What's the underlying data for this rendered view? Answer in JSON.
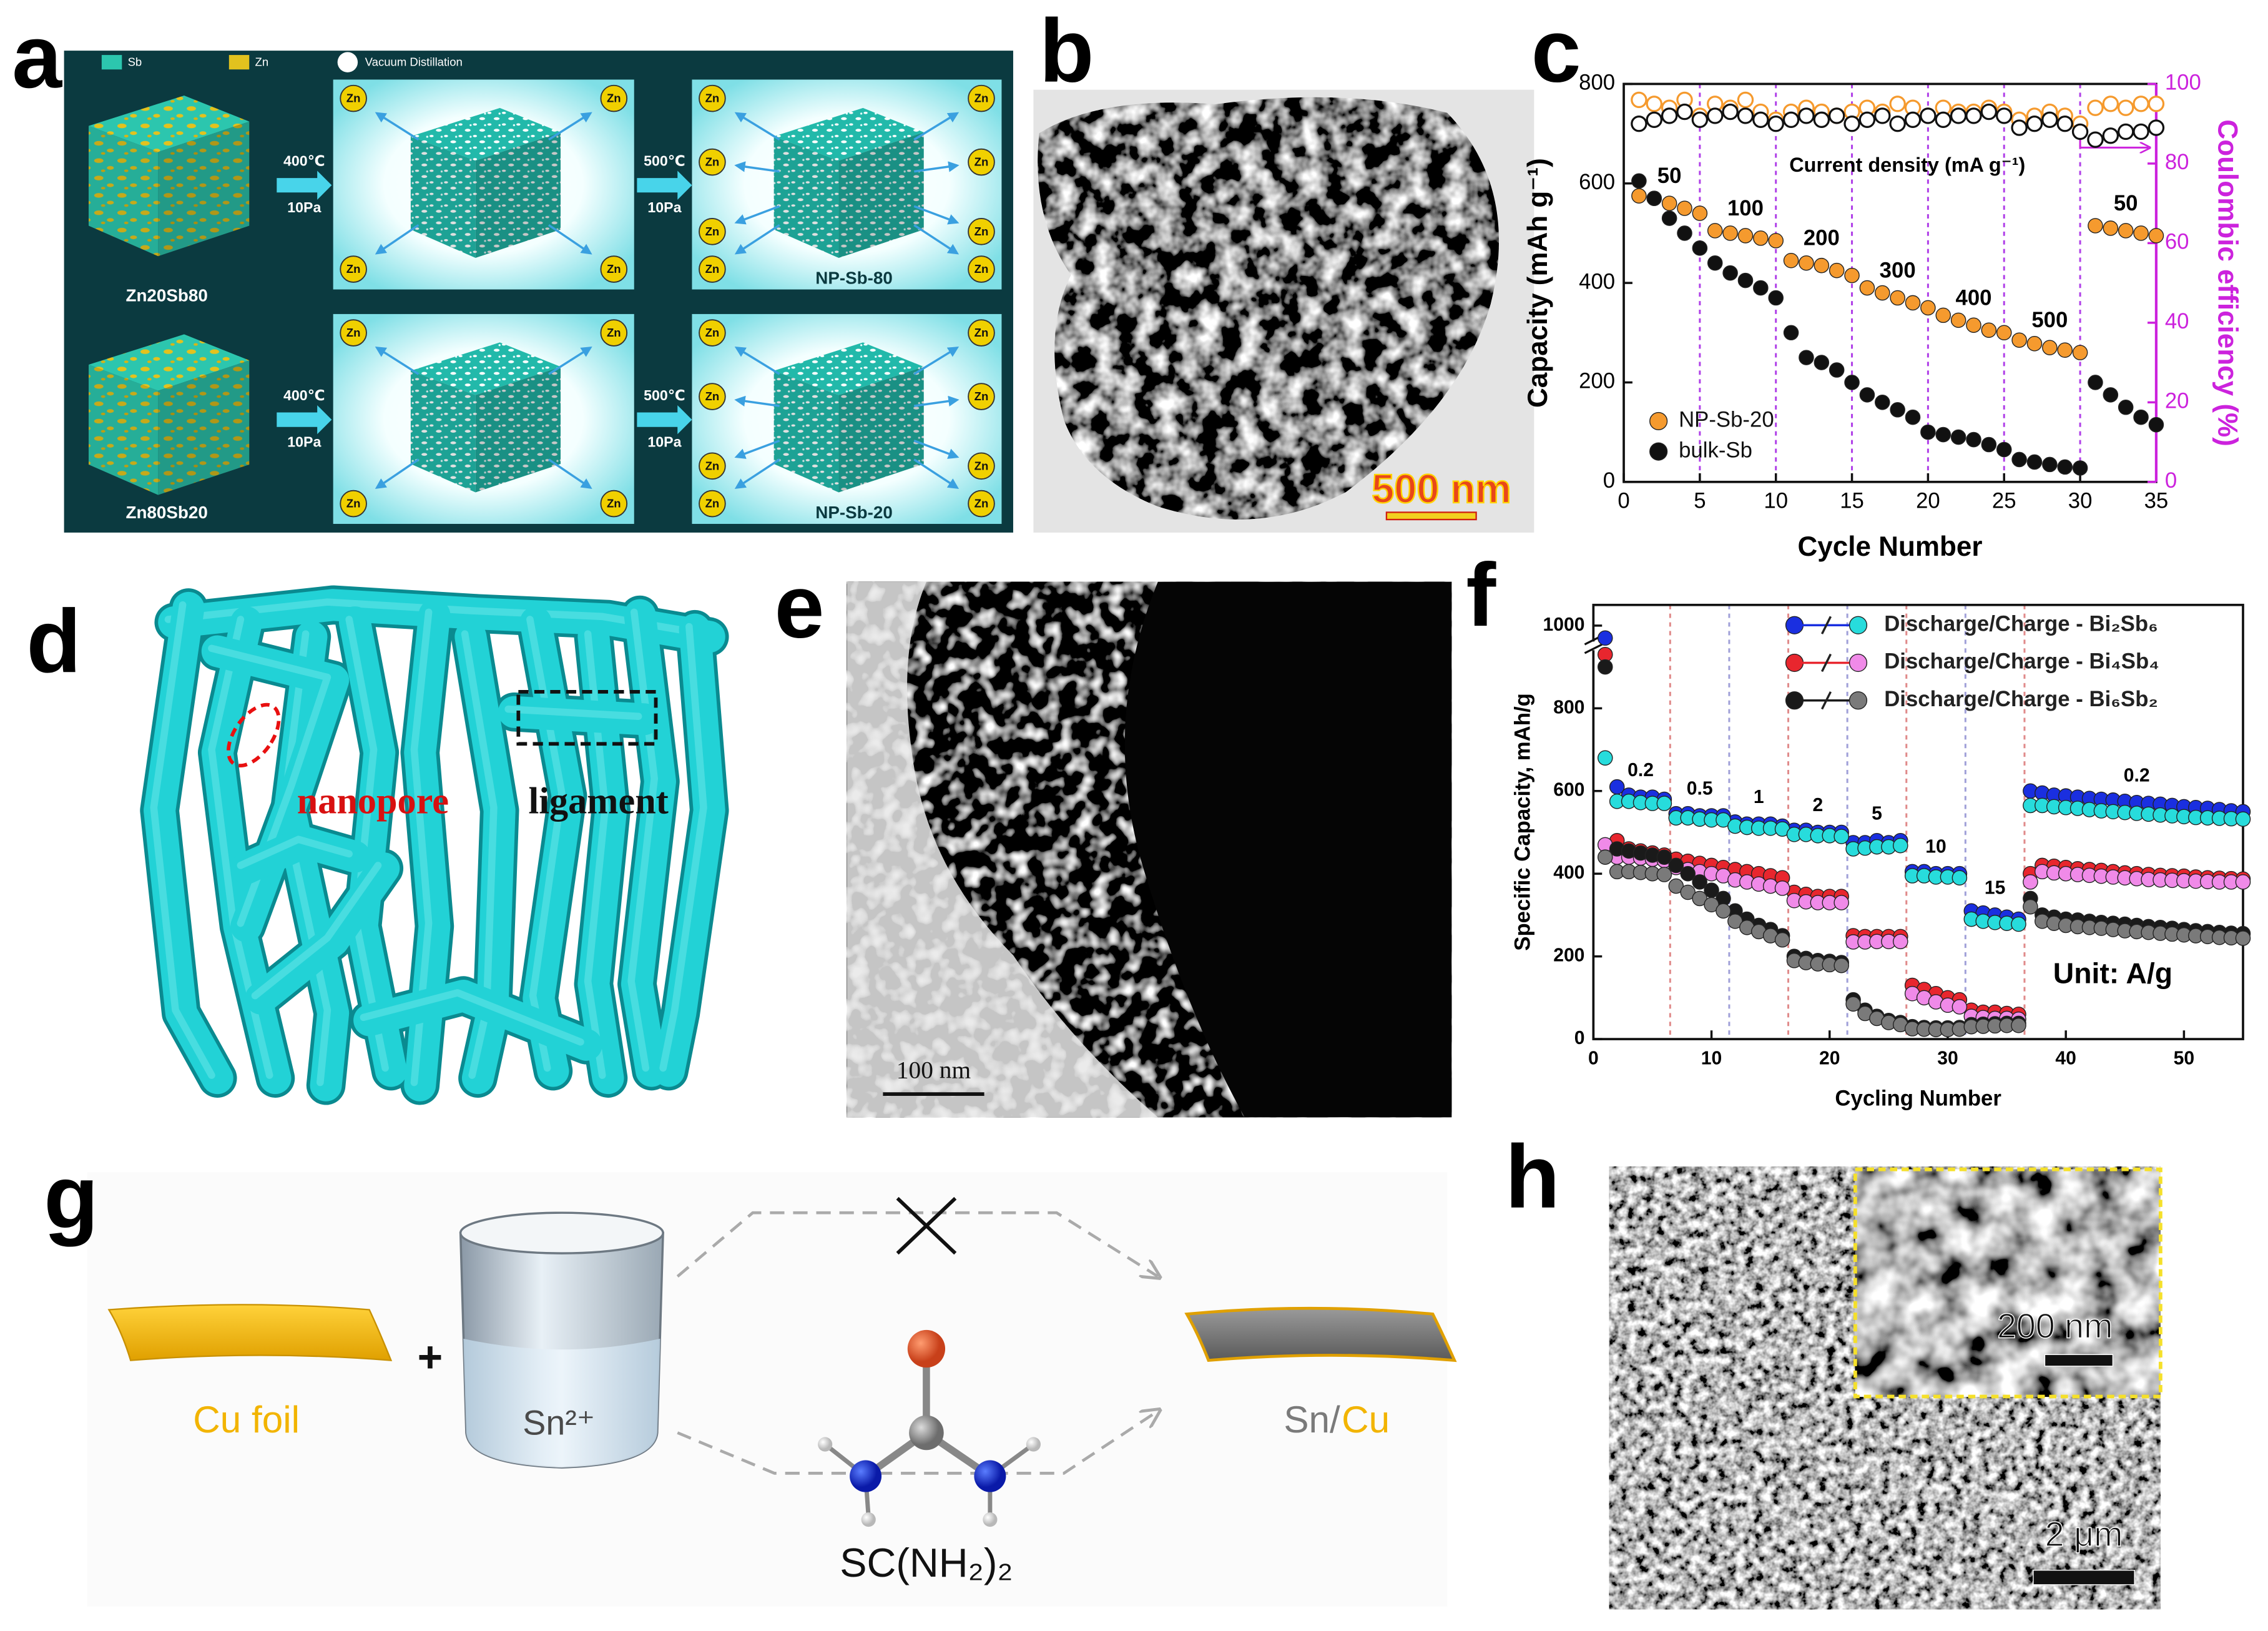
{
  "panel_labels": [
    "a",
    "b",
    "c",
    "d",
    "e",
    "f",
    "g",
    "h"
  ],
  "panel_a": {
    "legend": [
      "Sb",
      "Zn",
      "Vacuum Distillation"
    ],
    "steps": [
      {
        "temperature": "400℃",
        "pressure": "10Pa"
      },
      {
        "temperature": "500℃",
        "pressure": "10Pa"
      }
    ],
    "rows": [
      {
        "precursor": "Zn20Sb80",
        "product": "NP-Sb-80"
      },
      {
        "precursor": "Zn80Sb20",
        "product": "NP-Sb-20"
      }
    ],
    "evaporant": "Zn"
  },
  "panel_b": {
    "scale_bar": "500 nm"
  },
  "panel_d": {
    "labels": [
      "nanopore",
      "ligament"
    ]
  },
  "panel_e": {
    "scale_bar": "100 nm"
  },
  "panel_g": {
    "substrate": "Cu foil",
    "plus": "+",
    "solution": "Sn²⁺",
    "additive": "SC(NH₂)₂",
    "product_parts": [
      "Sn/",
      "Cu"
    ]
  },
  "panel_h": {
    "inset_scale_bar": "200 nm",
    "scale_bar": "2 μm"
  },
  "chart_data": [
    {
      "type": "scatter",
      "x": [
        1,
        2,
        3,
        4,
        5,
        6,
        7,
        8,
        9,
        10,
        11,
        12,
        13,
        14,
        15,
        16,
        17,
        18,
        19,
        20,
        21,
        22,
        23,
        24,
        25,
        26,
        27,
        28,
        29,
        30,
        31,
        32,
        33,
        34,
        35
      ],
      "xlim": [
        0,
        35
      ],
      "xticks": [
        0,
        5,
        10,
        15,
        20,
        25,
        30,
        35
      ],
      "ylim": [
        0,
        800
      ],
      "yticks": [
        0,
        200,
        400,
        600,
        800
      ],
      "y2lim": [
        0,
        100
      ],
      "y2ticks": [
        0,
        20,
        40,
        60,
        80,
        100
      ],
      "xlabel": "Cycle Number",
      "ylabel": "Capacity (mAh g⁻¹)",
      "y2label": "Coulombic efficiency (%)",
      "y2color": "#cc22dd",
      "annotation": "Current density (mA g⁻¹)",
      "dividers": [
        5,
        10,
        15,
        20,
        25,
        30
      ],
      "divider_colors": [
        "#b040e8"
      ],
      "rate_labels": [
        "50",
        "100",
        "200",
        "300",
        "400",
        "500",
        "50"
      ],
      "legend_position": "lower left",
      "series": [
        {
          "name": "NP-Sb-20",
          "color": "#f59a2e",
          "values": [
            575,
            570,
            560,
            550,
            540,
            505,
            500,
            495,
            490,
            485,
            445,
            440,
            435,
            425,
            415,
            390,
            380,
            370,
            360,
            350,
            335,
            325,
            315,
            305,
            300,
            285,
            278,
            270,
            265,
            260,
            515,
            510,
            505,
            500,
            495
          ]
        },
        {
          "name": "bulk-Sb",
          "color": "#111111",
          "values": [
            605,
            570,
            530,
            500,
            470,
            440,
            420,
            405,
            390,
            370,
            300,
            250,
            240,
            225,
            200,
            175,
            160,
            145,
            130,
            100,
            95,
            90,
            85,
            75,
            65,
            45,
            40,
            35,
            30,
            28,
            200,
            175,
            150,
            130,
            115
          ]
        },
        {
          "color": "#f59a2e",
          "axis": "y2",
          "marker": "hollow",
          "values": [
            96,
            95,
            94,
            96,
            92,
            95,
            94,
            96,
            93,
            91,
            93,
            94,
            93,
            92,
            93,
            94,
            93,
            95,
            94,
            92,
            94,
            93,
            93,
            94,
            93,
            91,
            92,
            93,
            92,
            90,
            94,
            95,
            94,
            95,
            95
          ]
        },
        {
          "color": "#111111",
          "axis": "y2",
          "marker": "hollow",
          "values": [
            90,
            91,
            92,
            93,
            91,
            92,
            93,
            92,
            91,
            90,
            91,
            92,
            91,
            92,
            90,
            91,
            92,
            90,
            91,
            92,
            91,
            92,
            92,
            93,
            92,
            89,
            90,
            91,
            90,
            88,
            86,
            87,
            88,
            88,
            89
          ]
        }
      ]
    },
    {
      "type": "scatter",
      "x": [
        1,
        2,
        3,
        4,
        5,
        6,
        7,
        8,
        9,
        10,
        11,
        12,
        13,
        14,
        15,
        16,
        17,
        18,
        19,
        20,
        21,
        22,
        23,
        24,
        25,
        26,
        27,
        28,
        29,
        30,
        31,
        32,
        33,
        34,
        35,
        36,
        37,
        38,
        39,
        40,
        41,
        42,
        43,
        44,
        45,
        46,
        47,
        48,
        49,
        50,
        51,
        52,
        53,
        54,
        55
      ],
      "xlim": [
        0,
        55
      ],
      "xticks": [
        0,
        10,
        20,
        30,
        40,
        50
      ],
      "ylim": [
        0,
        1050
      ],
      "yticks": [
        0,
        200,
        400,
        600,
        800,
        1000
      ],
      "y_break": true,
      "xlabel": "Cycling Number",
      "ylabel": "Specific Capacity, mAh/g",
      "dividers": [
        6.5,
        11.5,
        16.5,
        21.5,
        26.5,
        31.5,
        36.5
      ],
      "divider_colors": [
        "#e08a8a",
        "#a0a0d8"
      ],
      "rate_labels": [
        "0.2",
        "0.5",
        "1",
        "2",
        "5",
        "10",
        "15",
        "0.2"
      ],
      "annotation": "Unit: A/g",
      "legend_position": "upper right",
      "series": [
        {
          "name": "Discharge/Charge - Bi₂Sb₆",
          "color": "#1a2fe0",
          "charge_color": "#27dcdc",
          "values": [
            970,
            610,
            590,
            585,
            585,
            580,
            545,
            545,
            540,
            540,
            540,
            525,
            520,
            520,
            520,
            515,
            505,
            505,
            500,
            500,
            500,
            475,
            475,
            480,
            475,
            480,
            405,
            405,
            400,
            400,
            400,
            310,
            305,
            300,
            295,
            290,
            600,
            595,
            590,
            588,
            585,
            582,
            580,
            578,
            575,
            572,
            570,
            568,
            565,
            562,
            560,
            558,
            555,
            552,
            550
          ],
          "charge_values": [
            680,
            575,
            575,
            572,
            570,
            570,
            535,
            535,
            532,
            530,
            530,
            515,
            512,
            510,
            510,
            508,
            495,
            495,
            492,
            492,
            490,
            460,
            462,
            465,
            465,
            468,
            395,
            395,
            392,
            392,
            390,
            290,
            285,
            282,
            280,
            278,
            565,
            565,
            562,
            560,
            558,
            555,
            552,
            550,
            548,
            546,
            544,
            542,
            540,
            538,
            536,
            535,
            534,
            533,
            532
          ]
        },
        {
          "name": "Discharge/Charge - Bi₄Sb₄",
          "color": "#e8262e",
          "charge_color": "#f08ae8",
          "values": [
            930,
            480,
            460,
            455,
            450,
            445,
            435,
            430,
            425,
            420,
            415,
            410,
            405,
            400,
            395,
            390,
            355,
            350,
            345,
            345,
            345,
            250,
            248,
            248,
            248,
            248,
            130,
            120,
            110,
            100,
            95,
            70,
            65,
            65,
            62,
            60,
            400,
            420,
            418,
            415,
            412,
            410,
            408,
            405,
            402,
            400,
            398,
            396,
            395,
            394,
            392,
            390,
            389,
            388,
            387
          ],
          "charge_values": [
            470,
            440,
            440,
            438,
            435,
            432,
            415,
            410,
            405,
            400,
            395,
            385,
            380,
            375,
            370,
            365,
            335,
            332,
            330,
            330,
            330,
            235,
            235,
            236,
            236,
            236,
            110,
            100,
            90,
            82,
            78,
            55,
            52,
            50,
            50,
            48,
            380,
            405,
            402,
            400,
            398,
            396,
            394,
            392,
            390,
            388,
            386,
            385,
            384,
            383,
            382,
            381,
            380,
            380,
            380
          ]
        },
        {
          "name": "Discharge/Charge - Bi₆Sb₂",
          "color": "#1a1a1a",
          "charge_color": "#7a7a7a",
          "values": [
            900,
            460,
            455,
            450,
            445,
            440,
            420,
            400,
            380,
            360,
            340,
            310,
            290,
            275,
            265,
            250,
            200,
            195,
            190,
            188,
            185,
            95,
            70,
            55,
            45,
            40,
            30,
            28,
            27,
            27,
            28,
            35,
            36,
            37,
            38,
            38,
            340,
            300,
            295,
            290,
            288,
            285,
            282,
            280,
            278,
            275,
            272,
            270,
            268,
            265,
            262,
            260,
            258,
            256,
            255
          ],
          "charge_values": [
            440,
            405,
            405,
            403,
            400,
            398,
            370,
            355,
            340,
            325,
            310,
            285,
            270,
            260,
            250,
            240,
            190,
            185,
            182,
            180,
            178,
            85,
            62,
            50,
            40,
            35,
            25,
            24,
            23,
            23,
            24,
            30,
            31,
            32,
            33,
            33,
            320,
            285,
            280,
            275,
            272,
            270,
            268,
            265,
            262,
            260,
            258,
            256,
            254,
            252,
            250,
            248,
            246,
            245,
            244
          ]
        }
      ]
    }
  ]
}
